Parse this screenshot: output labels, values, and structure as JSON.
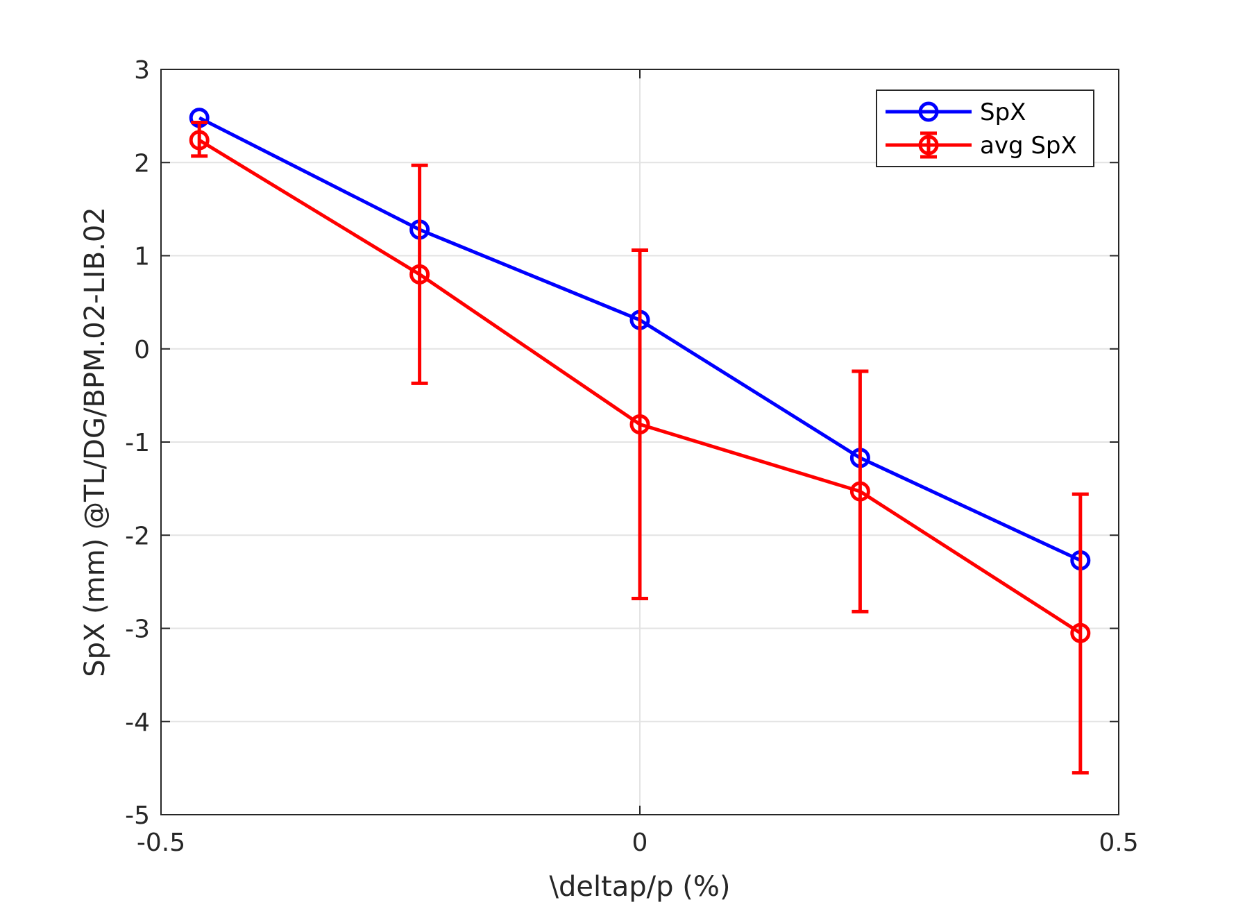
{
  "chart_data": {
    "type": "line",
    "title": "",
    "xlabel": "\\deltap/p (%)",
    "ylabel": "SpX (mm) @TL/DG/BPM.02-LIB.02",
    "xlim": [
      -0.5,
      0.5
    ],
    "ylim": [
      -5,
      3
    ],
    "xticks": [
      -0.5,
      0,
      0.5
    ],
    "xtick_labels": [
      "-0.5",
      "0",
      "0.5"
    ],
    "yticks": [
      -5,
      -4,
      -3,
      -2,
      -1,
      0,
      1,
      2,
      3
    ],
    "ytick_labels": [
      "-5",
      "-4",
      "-3",
      "-2",
      "-1",
      "0",
      "1",
      "2",
      "3"
    ],
    "grid": true,
    "legend_position": "top-right",
    "x": [
      -0.46,
      -0.23,
      0.0,
      0.23,
      0.46
    ],
    "series": [
      {
        "name": "SpX",
        "color": "#0000ff",
        "marker": "circle",
        "values": [
          2.48,
          1.28,
          0.31,
          -1.17,
          -2.27
        ]
      },
      {
        "name": "avg SpX",
        "color": "#ff0000",
        "marker": "circle",
        "errorbars": true,
        "values": [
          2.24,
          0.8,
          -0.81,
          -1.53,
          -3.05
        ],
        "error_upper": [
          2.43,
          1.97,
          1.06,
          -0.24,
          -1.56
        ],
        "error_lower": [
          2.07,
          -0.37,
          -2.68,
          -2.82,
          -4.55
        ]
      }
    ]
  },
  "legend": {
    "items": [
      "SpX",
      "avg SpX"
    ]
  }
}
